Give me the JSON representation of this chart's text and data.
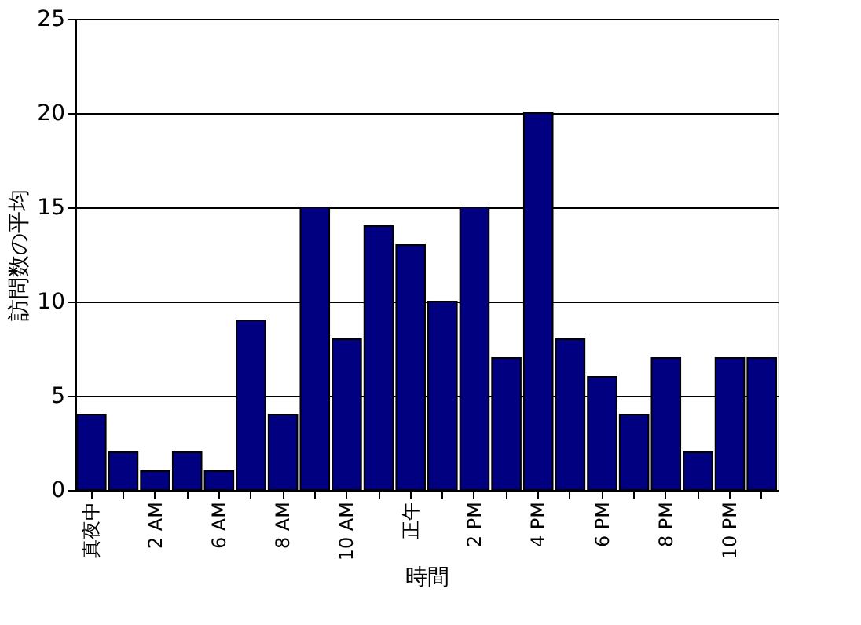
{
  "chart_data": {
    "type": "bar",
    "xlabel": "時間",
    "ylabel": "訪問数の平均",
    "categories": [
      "真夜中",
      null,
      "2 AM",
      null,
      "6 AM",
      null,
      "8 AM",
      null,
      "10 AM",
      null,
      "正午",
      null,
      "2 PM",
      null,
      "4 PM",
      null,
      "6 PM",
      null,
      "8 PM",
      null,
      "10 PM",
      null
    ],
    "values": [
      4,
      2,
      1,
      2,
      1,
      9,
      4,
      15,
      8,
      14,
      13,
      10,
      15,
      7,
      20,
      8,
      6,
      4,
      7,
      2,
      7,
      7
    ],
    "color": "#000080",
    "ylim": [
      0,
      25
    ],
    "yticks": [
      0,
      5,
      10,
      15,
      20,
      25
    ],
    "grid": "y"
  }
}
